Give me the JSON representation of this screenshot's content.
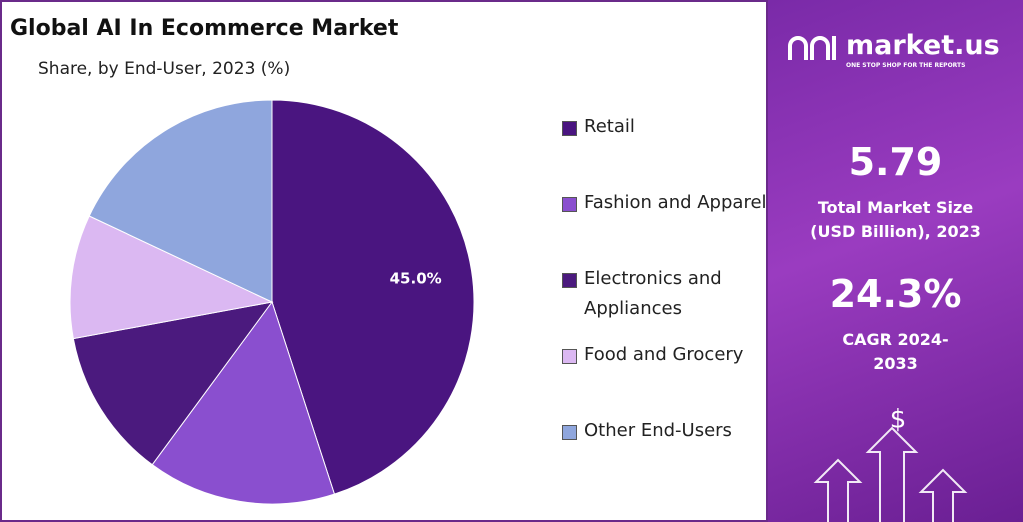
{
  "chart_data": {
    "type": "pie",
    "title": "Global AI In Ecommerce Market",
    "subtitle": "Share, by End-User, 2023 (%)",
    "categories": [
      "Retail",
      "Fashion and Apparel",
      "Electronics and Appliances",
      "Food and Grocery",
      "Other End-Users"
    ],
    "values": [
      45.0,
      15.1,
      12.0,
      9.9,
      18.0
    ],
    "value_labels": [
      "45.0%",
      null,
      null,
      null,
      null
    ],
    "colors": [
      "#4a1580",
      "#8a4fcf",
      "#4b1a7e",
      "#dbb8f2",
      "#8fa6dd"
    ]
  },
  "panel": {
    "brand": "market.us",
    "tagline": "ONE STOP SHOP FOR THE REPORTS",
    "market_size": "5.79",
    "market_size_label": "Total Market Size (USD Billion), 2023",
    "cagr": "24.3%",
    "cagr_label": "CAGR 2024-2033"
  }
}
